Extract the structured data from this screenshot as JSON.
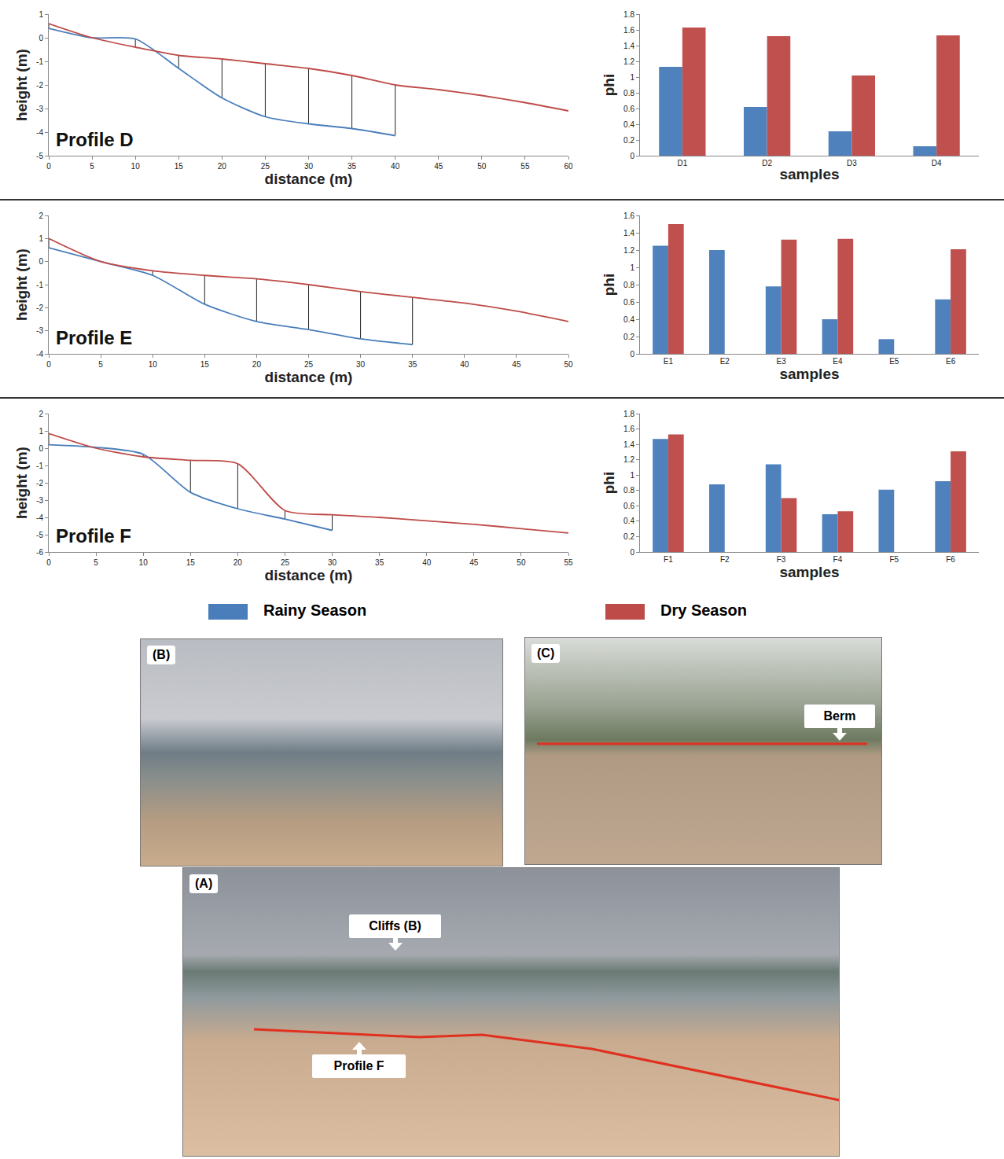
{
  "chart_data": [
    {
      "type": "line",
      "title": "Profile D",
      "x_label": "distance (m)",
      "y_label": "height (m)",
      "x": [
        0,
        5,
        10,
        15,
        20,
        25,
        30,
        35,
        40,
        45,
        50,
        55,
        60
      ],
      "series": [
        {
          "name": "Rainy Season",
          "color": "#4a7ebb",
          "values": [
            0.4,
            0.0,
            -0.05,
            -1.3,
            -2.55,
            -3.35,
            -3.65,
            -3.85,
            -4.15,
            null,
            null,
            null,
            null
          ]
        },
        {
          "name": "Dry Season",
          "color": "#be4b48",
          "values": [
            0.6,
            0.0,
            -0.4,
            -0.75,
            -0.9,
            -1.1,
            -1.3,
            -1.6,
            -2.0,
            -2.2,
            -2.45,
            -2.75,
            -3.1
          ]
        }
      ],
      "xlim": [
        0,
        60
      ],
      "xticks": [
        0,
        5,
        10,
        15,
        20,
        25,
        30,
        35,
        40,
        45,
        50,
        55,
        60
      ],
      "ylim": [
        -5,
        1
      ],
      "yticks": [
        -5,
        -4,
        -3,
        -2,
        -1,
        0,
        1
      ],
      "grid": false,
      "legend": "bottom"
    },
    {
      "type": "bar",
      "x_label": "samples",
      "y_label": "phi",
      "categories": [
        "D1",
        "D2",
        "D3",
        "D4"
      ],
      "series": [
        {
          "name": "Rainy Season",
          "color": "#4f81bd",
          "values": [
            1.13,
            0.62,
            0.31,
            0.12
          ]
        },
        {
          "name": "Dry Season",
          "color": "#c0504d",
          "values": [
            1.63,
            1.52,
            1.02,
            1.53
          ]
        }
      ],
      "ylim": [
        0,
        1.8
      ],
      "yticks": [
        0,
        0.2,
        0.4,
        0.6,
        0.8,
        1,
        1.2,
        1.4,
        1.6,
        1.8
      ],
      "grid": false,
      "legend": "bottom"
    },
    {
      "type": "line",
      "title": "Profile E",
      "x_label": "distance (m)",
      "y_label": "height (m)",
      "x": [
        0,
        5,
        10,
        15,
        20,
        25,
        30,
        35,
        40,
        45,
        50
      ],
      "series": [
        {
          "name": "Rainy Season",
          "color": "#4a7ebb",
          "values": [
            0.6,
            0.0,
            -0.6,
            -1.85,
            -2.6,
            -2.95,
            -3.35,
            -3.6,
            null,
            null,
            null
          ]
        },
        {
          "name": "Dry Season",
          "color": "#be4b48",
          "values": [
            1.0,
            0.0,
            -0.4,
            -0.6,
            -0.75,
            -1.0,
            -1.3,
            -1.55,
            -1.8,
            -2.15,
            -2.6
          ]
        }
      ],
      "xlim": [
        0,
        50
      ],
      "xticks": [
        0,
        5,
        10,
        15,
        20,
        25,
        30,
        35,
        40,
        45,
        50
      ],
      "ylim": [
        -4,
        2
      ],
      "yticks": [
        -4,
        -3,
        -2,
        -1,
        0,
        1,
        2
      ],
      "grid": false,
      "legend": "bottom"
    },
    {
      "type": "bar",
      "x_label": "samples",
      "y_label": "phi",
      "categories": [
        "E1",
        "E2",
        "E3",
        "E4",
        "E5",
        "E6"
      ],
      "series": [
        {
          "name": "Rainy Season",
          "color": "#4f81bd",
          "values": [
            1.25,
            1.2,
            0.78,
            0.4,
            0.17,
            0.63
          ]
        },
        {
          "name": "Dry Season",
          "color": "#c0504d",
          "values": [
            1.5,
            null,
            1.32,
            1.33,
            null,
            1.21
          ]
        }
      ],
      "ylim": [
        0,
        1.6
      ],
      "yticks": [
        0,
        0.2,
        0.4,
        0.6,
        0.8,
        1,
        1.2,
        1.4,
        1.6
      ],
      "grid": false,
      "legend": "bottom"
    },
    {
      "type": "line",
      "title": "Profile F",
      "x_label": "distance (m)",
      "y_label": "height (m)",
      "x": [
        0,
        5,
        10,
        15,
        20,
        25,
        30,
        35,
        40,
        45,
        50,
        55
      ],
      "series": [
        {
          "name": "Rainy Season",
          "color": "#4a7ebb",
          "values": [
            0.2,
            0.05,
            -0.35,
            -2.55,
            -3.5,
            -4.1,
            -4.75,
            null,
            null,
            null,
            null,
            null
          ]
        },
        {
          "name": "Dry Season",
          "color": "#be4b48",
          "values": [
            0.85,
            0.0,
            -0.5,
            -0.7,
            -0.9,
            -3.6,
            -3.85,
            -4.0,
            -4.2,
            -4.4,
            -4.65,
            -4.9
          ]
        }
      ],
      "xlim": [
        0,
        55
      ],
      "xticks": [
        0,
        5,
        10,
        15,
        20,
        25,
        30,
        35,
        40,
        45,
        50,
        55
      ],
      "ylim": [
        -6,
        2
      ],
      "yticks": [
        -6,
        -5,
        -4,
        -3,
        -2,
        -1,
        0,
        1,
        2
      ],
      "grid": false,
      "legend": "bottom"
    },
    {
      "type": "bar",
      "x_label": "samples",
      "y_label": "phi",
      "categories": [
        "F1",
        "F2",
        "F3",
        "F4",
        "F5",
        "F6"
      ],
      "series": [
        {
          "name": "Rainy Season",
          "color": "#4f81bd",
          "values": [
            1.47,
            0.88,
            1.14,
            0.49,
            0.81,
            0.92
          ]
        },
        {
          "name": "Dry Season",
          "color": "#c0504d",
          "values": [
            1.53,
            null,
            0.7,
            0.53,
            null,
            1.31
          ]
        }
      ],
      "ylim": [
        0,
        1.8
      ],
      "yticks": [
        0,
        0.2,
        0.4,
        0.6,
        0.8,
        1,
        1.2,
        1.4,
        1.6,
        1.8
      ],
      "grid": false,
      "legend": "bottom"
    }
  ],
  "photos": [
    {
      "label": "(B)"
    },
    {
      "label": "(C)",
      "callouts": [
        "Berm"
      ]
    },
    {
      "label": "(A)",
      "callouts": [
        "Cliffs (B)",
        "Profile F"
      ]
    }
  ]
}
